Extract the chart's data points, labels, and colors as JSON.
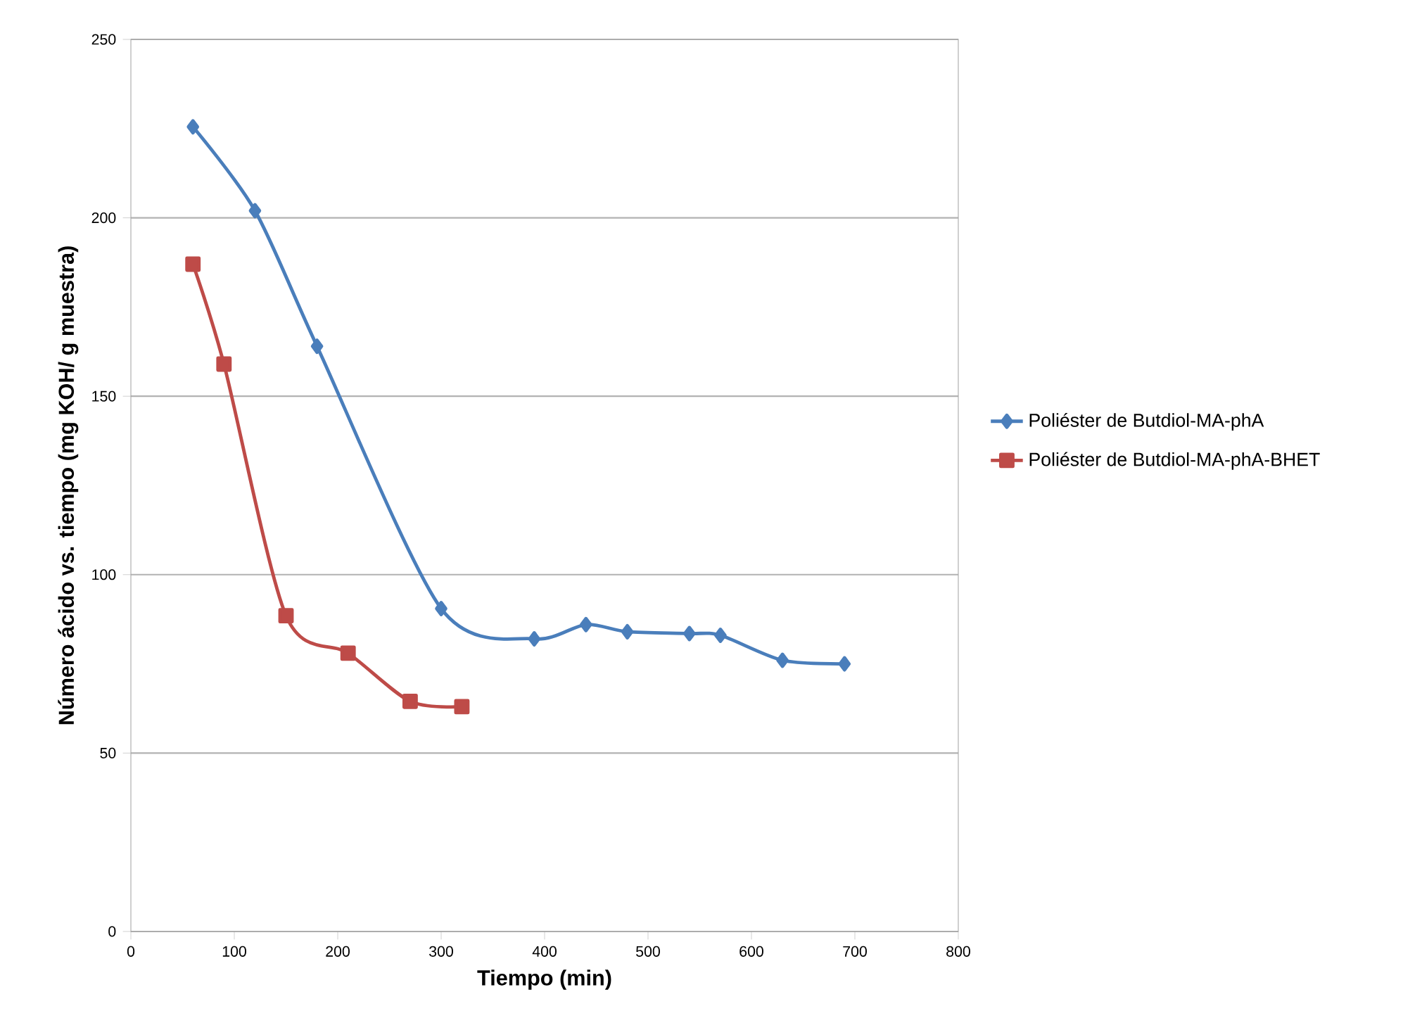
{
  "chart_data": {
    "type": "line",
    "xlabel": "Tiempo (min)",
    "ylabel": "Número ácido vs. tiempo (mg KOH/ g muestra)",
    "xlim": [
      0,
      800
    ],
    "xticks": [
      0,
      100,
      200,
      300,
      400,
      500,
      600,
      700,
      800
    ],
    "ylim": [
      0,
      250
    ],
    "yticks": [
      0,
      50,
      100,
      150,
      200,
      250
    ],
    "grid": "y",
    "legend": "right",
    "series": [
      {
        "name": "Poliéster de Butdiol-MA-phA",
        "color": "#4a7ebb",
        "marker": "diamond",
        "x": [
          60,
          120,
          180,
          300,
          390,
          440,
          480,
          540,
          570,
          630,
          690
        ],
        "values": [
          225.5,
          202,
          164,
          90.5,
          82,
          86,
          84,
          83.5,
          83,
          76,
          75
        ]
      },
      {
        "name": "Poliéster de Butdiol-MA-phA-BHET",
        "color": "#be4b48",
        "marker": "square",
        "x": [
          60,
          90,
          150,
          210,
          270,
          320
        ],
        "values": [
          187,
          159,
          88.5,
          78,
          64.5,
          63
        ]
      }
    ]
  }
}
